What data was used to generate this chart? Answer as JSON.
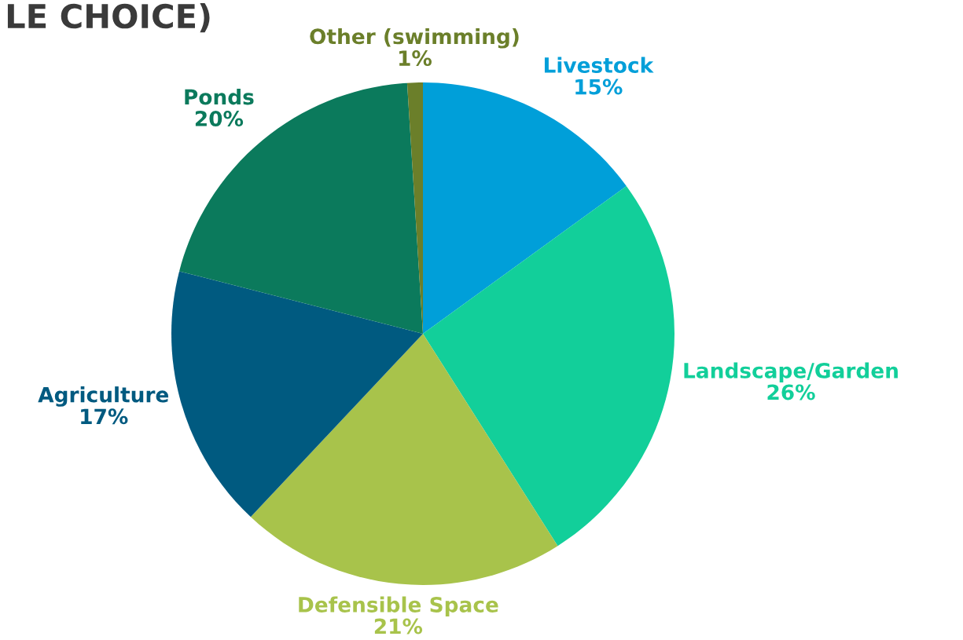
{
  "chart_data": {
    "type": "pie",
    "title": "LE CHOICE)",
    "categories": [
      "Livestock",
      "Landscape/Garden",
      "Defensible Space",
      "Agriculture",
      "Ponds",
      "Other (swimming)"
    ],
    "values": [
      15,
      26,
      21,
      17,
      20,
      1
    ],
    "value_labels": [
      "15%",
      "26%",
      "21%",
      "17%",
      "20%",
      "1%"
    ],
    "colors": [
      "#009fd9",
      "#12cf9a",
      "#a8c34b",
      "#005a80",
      "#0b7a5c",
      "#6b7f2a"
    ],
    "legend": false
  }
}
